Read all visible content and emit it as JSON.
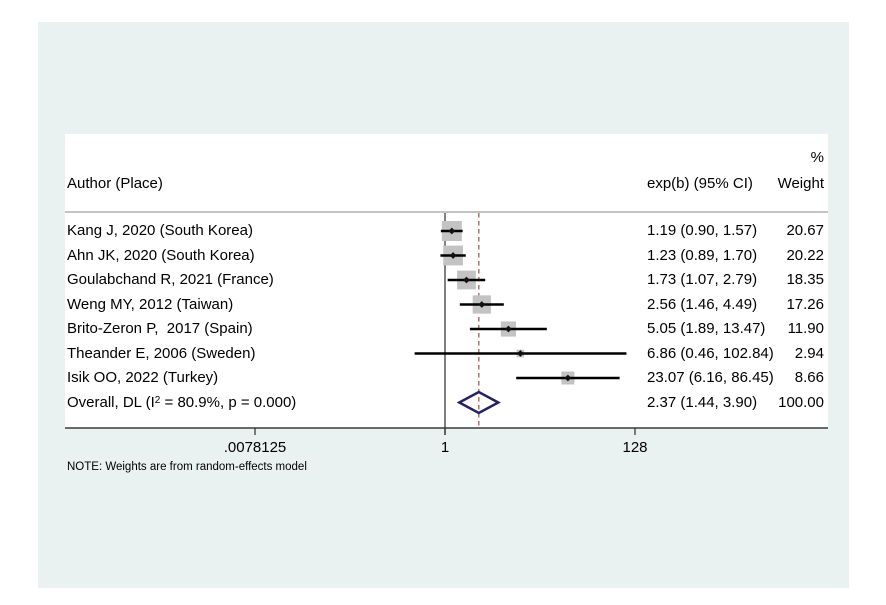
{
  "window": {
    "background": "#ffffff",
    "panel_background": "#e9f1f1"
  },
  "chart_data": {
    "type": "forest",
    "effect_measure": "exp(b)",
    "columns": {
      "author": "Author (Place)",
      "effect": "exp(b) (95% CI)",
      "weight_percent_symbol": "%",
      "weight": "Weight"
    },
    "x_axis": {
      "scale": "log2",
      "tick_labels": [
        ".0078125",
        "1",
        "128"
      ],
      "tick_values": [
        0.0078125,
        1,
        128
      ],
      "null_value": 1,
      "overall_value": 2.37
    },
    "studies": [
      {
        "label": "Kang J, 2020 (South Korea)",
        "est": 1.19,
        "lo": 0.9,
        "hi": 1.57,
        "ci_text": "1.19 (0.90, 1.57)",
        "weight": 20.67,
        "weight_text": "20.67"
      },
      {
        "label": "Ahn JK, 2020 (South Korea)",
        "est": 1.23,
        "lo": 0.89,
        "hi": 1.7,
        "ci_text": "1.23 (0.89, 1.70)",
        "weight": 20.22,
        "weight_text": "20.22"
      },
      {
        "label": "Goulabchand R, 2021 (France)",
        "est": 1.73,
        "lo": 1.07,
        "hi": 2.79,
        "ci_text": "1.73 (1.07, 2.79)",
        "weight": 18.35,
        "weight_text": "18.35"
      },
      {
        "label": "Weng MY, 2012 (Taiwan)",
        "est": 2.56,
        "lo": 1.46,
        "hi": 4.49,
        "ci_text": "2.56 (1.46, 4.49)",
        "weight": 17.26,
        "weight_text": "17.26"
      },
      {
        "label": "Brito-Zeron P,  2017 (Spain)",
        "est": 5.05,
        "lo": 1.89,
        "hi": 13.47,
        "ci_text": "5.05 (1.89, 13.47)",
        "weight": 11.9,
        "weight_text": "11.90"
      },
      {
        "label": "Theander E, 2006 (Sweden)",
        "est": 6.86,
        "lo": 0.46,
        "hi": 102.84,
        "ci_text": "6.86 (0.46, 102.84)",
        "weight": 2.94,
        "weight_text": "2.94"
      },
      {
        "label": "Isik OO, 2022 (Turkey)",
        "est": 23.07,
        "lo": 6.16,
        "hi": 86.45,
        "ci_text": "23.07 (6.16, 86.45)",
        "weight": 8.66,
        "weight_text": "8.66"
      }
    ],
    "overall": {
      "label_prefix": "Overall, DL (I",
      "label_sup": "2",
      "label_suffix": " = 80.9%, p = 0.000)",
      "est": 2.37,
      "lo": 1.44,
      "hi": 3.9,
      "ci_text": "2.37 (1.44, 3.90)",
      "weight_text": "100.00"
    },
    "note": "NOTE: Weights are from random-effects model",
    "colors": {
      "ci_line": "#000000",
      "box_fill": "#c3c3c3",
      "marker": "#111111",
      "diamond_stroke": "#23235f",
      "dashed_line": "#bb6e62",
      "axis_line": "#3a3a3a",
      "header_line": "#8a8a8a",
      "null_line": "#4a4a4a"
    }
  }
}
